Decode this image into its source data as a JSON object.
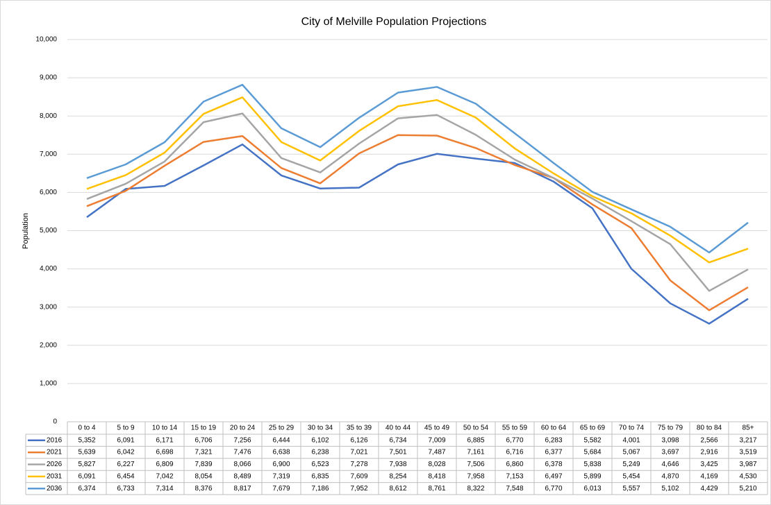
{
  "chart_data": {
    "type": "line",
    "title": "City of Melville Population Projections",
    "y_label": "Population",
    "categories": [
      "0 to 4",
      "5 to 9",
      "10 to 14",
      "15 to 19",
      "20 to 24",
      "25 to 29",
      "30 to 34",
      "35 to 39",
      "40 to 44",
      "45 to 49",
      "50 to 54",
      "55 to 59",
      "60 to 64",
      "65 to 69",
      "70 to 74",
      "75 to 79",
      "80 to 84",
      "85+"
    ],
    "series": [
      {
        "name": "2016",
        "color": "#4472c4",
        "values": [
          5352,
          6091,
          6171,
          6706,
          7256,
          6444,
          6102,
          6126,
          6734,
          7009,
          6885,
          6770,
          6283,
          5582,
          4001,
          3098,
          2566,
          3217
        ],
        "value_labels": [
          "5,352",
          "6,091",
          "6,171",
          "6,706",
          "7,256",
          "6,444",
          "6,102",
          "6,126",
          "6,734",
          "7,009",
          "6,885",
          "6,770",
          "6,283",
          "5,582",
          "4,001",
          "3,098",
          "2,566",
          "3,217"
        ]
      },
      {
        "name": "2021",
        "color": "#ed7d31",
        "values": [
          5639,
          6042,
          6698,
          7321,
          7476,
          6638,
          6238,
          7021,
          7501,
          7487,
          7161,
          6716,
          6377,
          5684,
          5067,
          3697,
          2916,
          3519
        ],
        "value_labels": [
          "5,639",
          "6,042",
          "6,698",
          "7,321",
          "7,476",
          "6,638",
          "6,238",
          "7,021",
          "7,501",
          "7,487",
          "7,161",
          "6,716",
          "6,377",
          "5,684",
          "5,067",
          "3,697",
          "2,916",
          "3,519"
        ]
      },
      {
        "name": "2026",
        "color": "#a5a5a5",
        "values": [
          5827,
          6227,
          6809,
          7839,
          8066,
          6900,
          6523,
          7278,
          7938,
          8028,
          7506,
          6860,
          6378,
          5838,
          5249,
          4646,
          3425,
          3987
        ],
        "value_labels": [
          "5,827",
          "6,227",
          "6,809",
          "7,839",
          "8,066",
          "6,900",
          "6,523",
          "7,278",
          "7,938",
          "8,028",
          "7,506",
          "6,860",
          "6,378",
          "5,838",
          "5,249",
          "4,646",
          "3,425",
          "3,987"
        ]
      },
      {
        "name": "2031",
        "color": "#ffc000",
        "values": [
          6091,
          6454,
          7042,
          8054,
          8489,
          7319,
          6835,
          7609,
          8254,
          8418,
          7958,
          7153,
          6497,
          5899,
          5454,
          4870,
          4169,
          4530
        ],
        "value_labels": [
          "6,091",
          "6,454",
          "7,042",
          "8,054",
          "8,489",
          "7,319",
          "6,835",
          "7,609",
          "8,254",
          "8,418",
          "7,958",
          "7,153",
          "6,497",
          "5,899",
          "5,454",
          "4,870",
          "4,169",
          "4,530"
        ]
      },
      {
        "name": "2036",
        "color": "#5b9bd5",
        "values": [
          6374,
          6733,
          7314,
          8376,
          8817,
          7679,
          7186,
          7952,
          8612,
          8761,
          8322,
          7548,
          6770,
          6013,
          5557,
          5102,
          4429,
          5210
        ],
        "value_labels": [
          "6,374",
          "6,733",
          "7,314",
          "8,376",
          "8,817",
          "7,679",
          "7,186",
          "7,952",
          "8,612",
          "8,761",
          "8,322",
          "7,548",
          "6,770",
          "6,013",
          "5,557",
          "5,102",
          "4,429",
          "5,210"
        ]
      }
    ],
    "ylim": [
      0,
      10000
    ],
    "yticks": [
      0,
      {
        "value": 1000,
        "label": "1,000"
      },
      {
        "value": 2000,
        "label": "2,000"
      },
      {
        "value": 3000,
        "label": "3,000"
      },
      {
        "value": 4000,
        "label": "4,000"
      },
      {
        "value": 5000,
        "label": "5,000"
      },
      {
        "value": 6000,
        "label": "6,000"
      },
      {
        "value": 7000,
        "label": "7,000"
      },
      {
        "value": 8000,
        "label": "8,000"
      },
      {
        "value": 9000,
        "label": "9,000"
      },
      {
        "value": 10000,
        "label": "10,000"
      }
    ],
    "grid": true
  }
}
